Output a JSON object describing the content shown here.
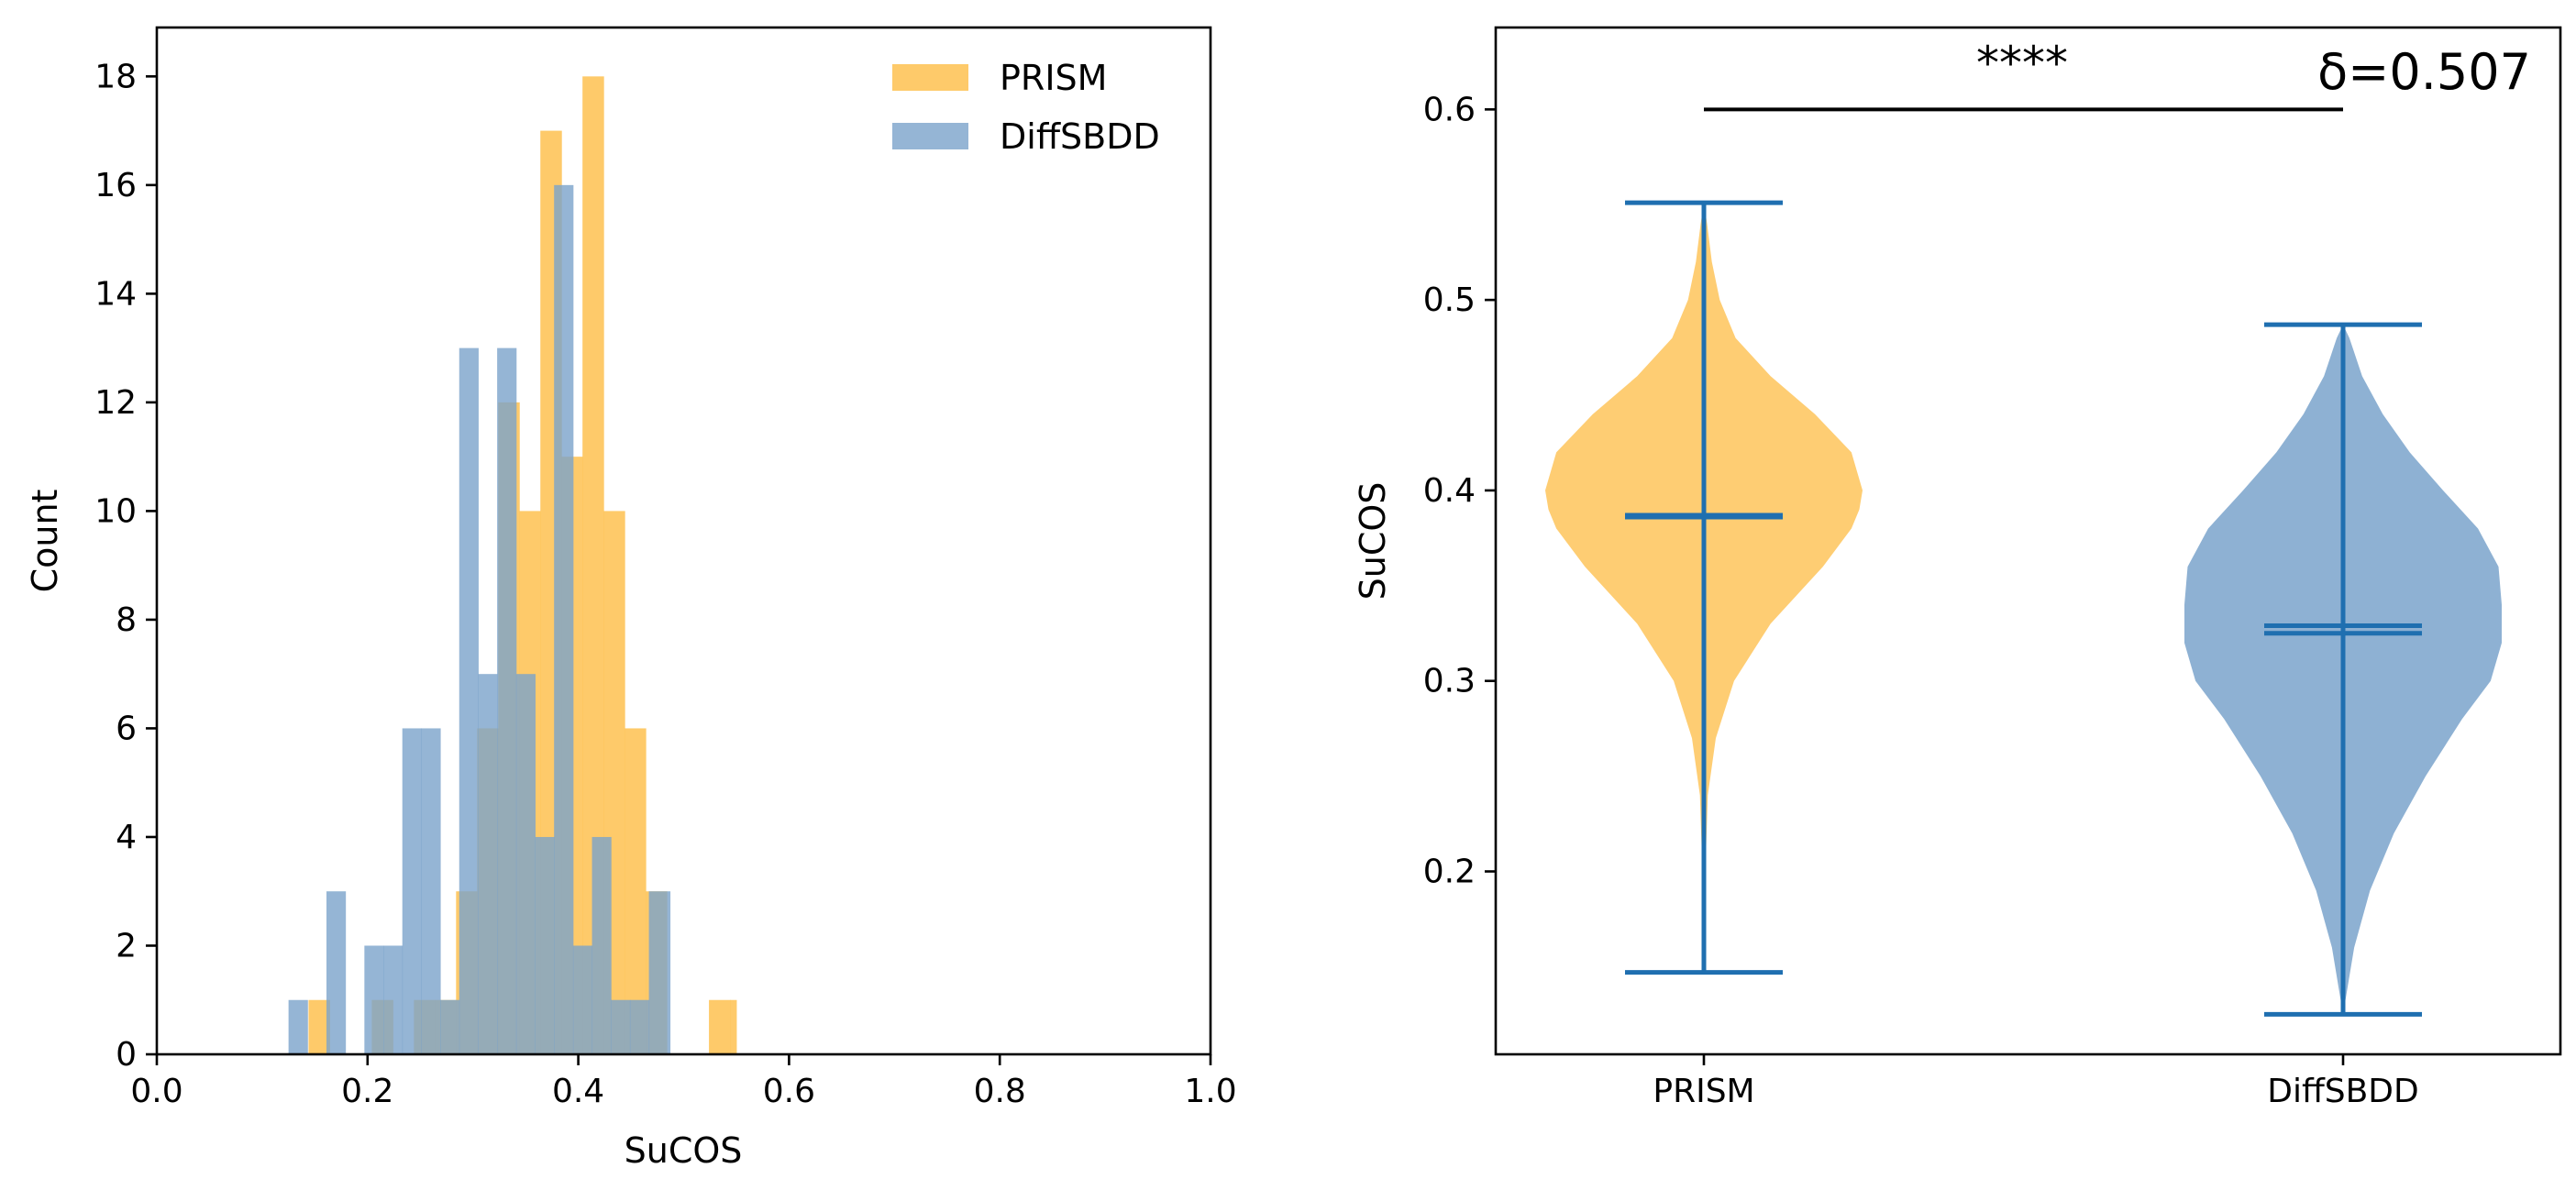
{
  "colors": {
    "prism": "#fec45a",
    "diffsbdd": "#7aa3cb",
    "violin_lines": "#1f6fb0",
    "axes": "#000000"
  },
  "chart_data": [
    {
      "type": "histogram",
      "xlabel": "SuCOS",
      "ylabel": "Count",
      "xlim": [
        0.0,
        1.0
      ],
      "ylim": [
        0,
        18.9
      ],
      "xticks": [
        "0.0",
        "0.2",
        "0.4",
        "0.6",
        "0.8",
        "1.0"
      ],
      "yticks": [
        "0",
        "2",
        "4",
        "6",
        "8",
        "10",
        "12",
        "14",
        "16",
        "18"
      ],
      "legend": {
        "placement": "top-right"
      },
      "grid": false,
      "series": [
        {
          "name": "PRISM",
          "color": "#fec45a",
          "alpha": 0.9,
          "bins": [
            [
              0.144,
              0.164,
              1
            ],
            [
              0.164,
              0.184,
              0
            ],
            [
              0.184,
              0.204,
              0
            ],
            [
              0.204,
              0.224,
              1
            ],
            [
              0.224,
              0.244,
              0
            ],
            [
              0.244,
              0.264,
              1
            ],
            [
              0.264,
              0.284,
              1
            ],
            [
              0.284,
              0.304,
              3
            ],
            [
              0.304,
              0.324,
              6
            ],
            [
              0.324,
              0.344,
              12
            ],
            [
              0.344,
              0.364,
              10
            ],
            [
              0.364,
              0.384,
              17
            ],
            [
              0.384,
              0.404,
              11
            ],
            [
              0.404,
              0.424,
              18
            ],
            [
              0.424,
              0.444,
              10
            ],
            [
              0.444,
              0.464,
              6
            ],
            [
              0.464,
              0.484,
              3
            ],
            [
              0.484,
              0.504,
              0
            ],
            [
              0.504,
              0.524,
              0
            ],
            [
              0.524,
              0.544,
              1
            ],
            [
              0.544,
              0.55,
              1
            ]
          ]
        },
        {
          "name": "DiffSBDD",
          "color": "#7aa3cb",
          "alpha": 0.8,
          "bins": [
            [
              0.125,
              0.143,
              1
            ],
            [
              0.143,
              0.161,
              0
            ],
            [
              0.161,
              0.179,
              3
            ],
            [
              0.179,
              0.197,
              0
            ],
            [
              0.197,
              0.215,
              2
            ],
            [
              0.215,
              0.233,
              2
            ],
            [
              0.233,
              0.251,
              6
            ],
            [
              0.251,
              0.269,
              6
            ],
            [
              0.269,
              0.287,
              1
            ],
            [
              0.287,
              0.305,
              13
            ],
            [
              0.305,
              0.323,
              7
            ],
            [
              0.323,
              0.341,
              13
            ],
            [
              0.341,
              0.359,
              7
            ],
            [
              0.359,
              0.377,
              4
            ],
            [
              0.377,
              0.395,
              16
            ],
            [
              0.395,
              0.413,
              2
            ],
            [
              0.413,
              0.431,
              4
            ],
            [
              0.431,
              0.449,
              1
            ],
            [
              0.449,
              0.467,
              1
            ],
            [
              0.467,
              0.487,
              3
            ]
          ]
        }
      ]
    },
    {
      "type": "violin",
      "ylabel": "SuCOS",
      "categories": [
        "PRISM",
        "DiffSBDD"
      ],
      "ylim": [
        0.104,
        0.643
      ],
      "yticks": [
        "0.2",
        "0.3",
        "0.4",
        "0.5",
        "0.6"
      ],
      "annotation": {
        "significance": "****",
        "effect_size": "δ=0.507",
        "bracket_y": 0.6
      },
      "series": [
        {
          "name": "PRISM",
          "color": "#fec45a",
          "min": 0.147,
          "max": 0.551,
          "mean": 0.386,
          "median": 0.387,
          "density_profile": [
            [
              0.147,
              0.0
            ],
            [
              0.17,
              0.004
            ],
            [
              0.2,
              0.009
            ],
            [
              0.24,
              0.025
            ],
            [
              0.27,
              0.075
            ],
            [
              0.3,
              0.19
            ],
            [
              0.33,
              0.42
            ],
            [
              0.36,
              0.75
            ],
            [
              0.38,
              0.93
            ],
            [
              0.39,
              0.98
            ],
            [
              0.4,
              1.0
            ],
            [
              0.42,
              0.93
            ],
            [
              0.44,
              0.7
            ],
            [
              0.46,
              0.42
            ],
            [
              0.48,
              0.2
            ],
            [
              0.5,
              0.1
            ],
            [
              0.52,
              0.05
            ],
            [
              0.54,
              0.02
            ],
            [
              0.551,
              0.0
            ]
          ]
        },
        {
          "name": "DiffSBDD",
          "color": "#7aa3cb",
          "min": 0.125,
          "max": 0.487,
          "mean": 0.329,
          "median": 0.325,
          "density_profile": [
            [
              0.125,
              0.0
            ],
            [
              0.14,
              0.03
            ],
            [
              0.16,
              0.07
            ],
            [
              0.19,
              0.17
            ],
            [
              0.22,
              0.32
            ],
            [
              0.25,
              0.52
            ],
            [
              0.28,
              0.75
            ],
            [
              0.3,
              0.93
            ],
            [
              0.32,
              1.0
            ],
            [
              0.34,
              1.0
            ],
            [
              0.36,
              0.98
            ],
            [
              0.38,
              0.85
            ],
            [
              0.4,
              0.63
            ],
            [
              0.42,
              0.42
            ],
            [
              0.44,
              0.25
            ],
            [
              0.46,
              0.12
            ],
            [
              0.48,
              0.04
            ],
            [
              0.487,
              0.0
            ]
          ]
        }
      ]
    }
  ]
}
